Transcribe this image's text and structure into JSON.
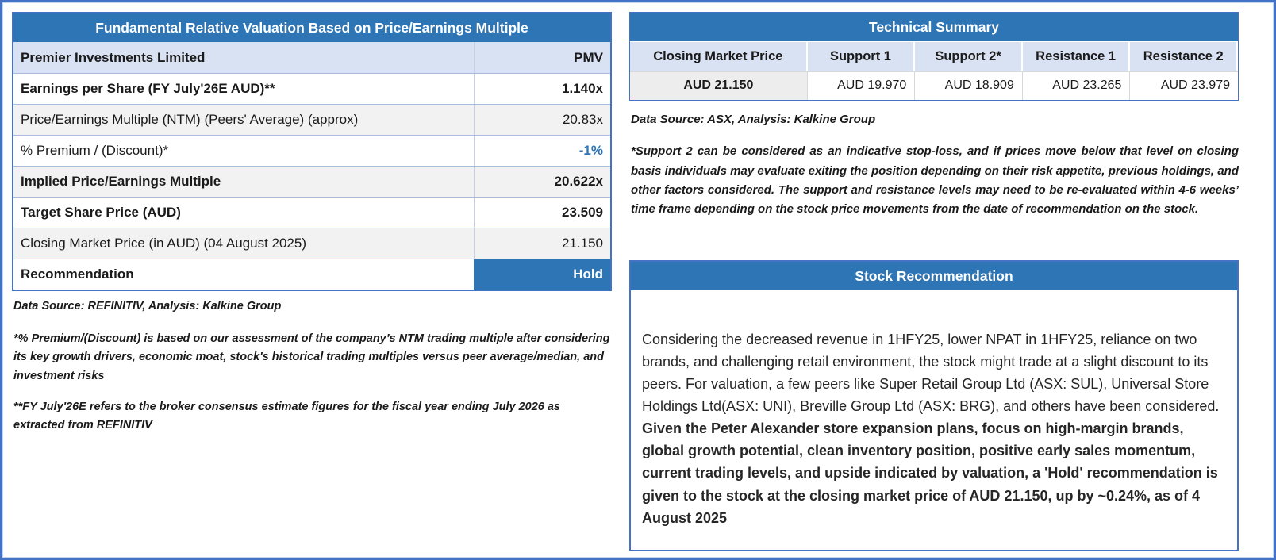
{
  "colors": {
    "header_blue": "#2E75B6",
    "border_blue": "#4472C4",
    "row_blue": "#D9E2F3",
    "stripe": "#F2F2F2",
    "accent": "#2E75B6"
  },
  "left_panel": {
    "title": "Fundamental Relative Valuation Based on Price/Earnings Multiple",
    "rows": [
      {
        "label": "Premier Investments Limited",
        "value": "PMV"
      },
      {
        "label": "Earnings per Share (FY July'26E AUD)**",
        "value": "1.140x"
      },
      {
        "label": "Price/Earnings Multiple (NTM)  (Peers' Average) (approx)",
        "value": "20.83x"
      },
      {
        "label": "% Premium / (Discount)*",
        "value": "-1%"
      },
      {
        "label": "Implied Price/Earnings Multiple",
        "value": "20.622x"
      },
      {
        "label": "Target Share Price (AUD)",
        "value": "23.509"
      },
      {
        "label": "Closing Market Price (in AUD) (04 August 2025)",
        "value": "21.150"
      },
      {
        "label": "Recommendation",
        "value": "Hold"
      }
    ],
    "source": "Data Source: REFINITIV, Analysis: Kalkine Group",
    "footnote1": "*% Premium/(Discount) is based on our assessment of the company’s NTM trading multiple after considering its key growth drivers, economic moat, stock's historical trading multiples versus peer average/median, and investment risks",
    "footnote2": "**FY July'26E refers to the broker consensus estimate figures for the fiscal year ending July 2026  as extracted from REFINITIV"
  },
  "technical_summary": {
    "title": "Technical Summary",
    "columns": [
      "Closing Market Price",
      "Support 1",
      "Support 2*",
      "Resistance 1",
      "Resistance 2"
    ],
    "values": [
      "AUD 21.150",
      "AUD 19.970",
      "AUD 18.909",
      "AUD 23.265",
      "AUD 23.979"
    ],
    "source": "Data Source: ASX, Analysis: Kalkine Group",
    "footnote": "*Support 2 can be considered as an indicative stop-loss, and if prices move below that level on closing basis individuals may evaluate exiting the position depending on their risk appetite, previous holdings, and other factors considered. The support and resistance levels may need to be re-evaluated within 4-6 weeks’ time frame depending on the stock price movements from the date of recommendation on the stock."
  },
  "stock_recommendation": {
    "title": "Stock Recommendation",
    "body_regular": "Considering the decreased revenue in 1HFY25, lower NPAT in 1HFY25, reliance on two brands, and challenging retail environment, the stock might trade at a slight discount to its peers. For valuation, a few peers like Super Retail Group Ltd (ASX: SUL), Universal Store Holdings Ltd(ASX: UNI), Breville Group Ltd (ASX: BRG), and others have been considered. ",
    "body_bold": "Given the Peter Alexander store expansion plans, focus on high-margin brands, global growth potential, clean inventory position, positive early sales momentum, current trading levels, and upside indicated by valuation, a 'Hold' recommendation is given to the stock at the closing market price of AUD 21.150, up by ~0.24%, as of 4 August 2025"
  }
}
